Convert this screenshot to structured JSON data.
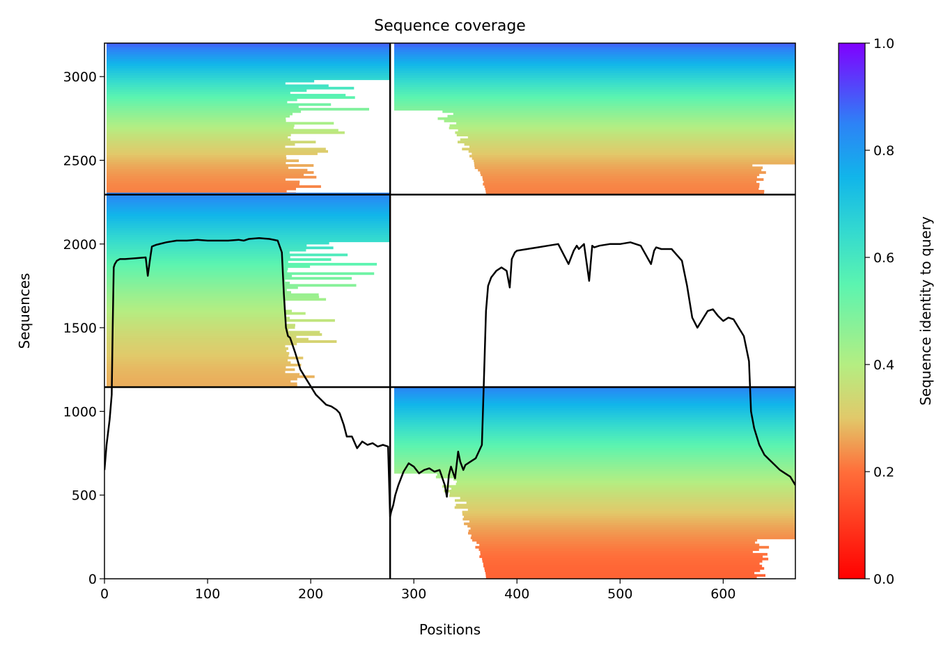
{
  "chart_data": {
    "type": "heatmap",
    "title": "Sequence coverage",
    "xlabel": "Positions",
    "ylabel": "Sequences",
    "xlim": [
      0,
      670
    ],
    "ylim": [
      0,
      3200
    ],
    "xticks": [
      0,
      100,
      200,
      300,
      400,
      500,
      600
    ],
    "yticks": [
      0,
      500,
      1000,
      1500,
      2000,
      2500,
      3000
    ],
    "colorbar": {
      "label": "Sequence identity to query",
      "range": [
        0,
        1
      ],
      "ticks": [
        "0.0",
        "0.2",
        "0.4",
        "0.6",
        "0.8",
        "1.0"
      ],
      "colormap": "rainbow_r"
    },
    "separators": {
      "vertical_at_position": 277,
      "horizontal_at_sequences": [
        1145,
        2295
      ]
    },
    "alignment_blocks": [
      {
        "panel": "top",
        "segment": "left",
        "seq_start": 2295,
        "seq_end": 3200,
        "pos_start": 2,
        "pos_end": 277,
        "identity_range": [
          0.22,
          0.9
        ],
        "coverage_cut": [
          175,
          277
        ]
      },
      {
        "panel": "top",
        "segment": "right",
        "seq_start": 2295,
        "seq_end": 3200,
        "pos_start": 277,
        "pos_end": 670,
        "identity_range": [
          0.22,
          0.9
        ],
        "coverage_cut": [
          370,
          628
        ]
      },
      {
        "panel": "middle",
        "segment": "left",
        "seq_start": 1145,
        "seq_end": 2295,
        "pos_start": 2,
        "pos_end": 277,
        "identity_range": [
          0.27,
          0.85
        ],
        "coverage_cut": [
          175,
          277
        ]
      },
      {
        "panel": "bottom",
        "segment": "right",
        "seq_start": 0,
        "seq_end": 1145,
        "pos_start": 277,
        "pos_end": 670,
        "identity_range": [
          0.18,
          0.85
        ],
        "coverage_cut": [
          370,
          628
        ]
      }
    ],
    "coverage_line": {
      "x": [
        0,
        2,
        5,
        7,
        8,
        9,
        10,
        12,
        15,
        20,
        30,
        40,
        42,
        44,
        46,
        48,
        50,
        60,
        70,
        80,
        90,
        100,
        110,
        120,
        130,
        135,
        140,
        150,
        160,
        168,
        172,
        174,
        176,
        178,
        180,
        185,
        190,
        195,
        200,
        205,
        210,
        215,
        220,
        225,
        228,
        232,
        235,
        240,
        245,
        250,
        255,
        260,
        265,
        270,
        275,
        277,
        278,
        280,
        282,
        285,
        290,
        295,
        300,
        305,
        310,
        315,
        320,
        325,
        330,
        332,
        334,
        336,
        340,
        343,
        345,
        348,
        350,
        355,
        360,
        363,
        366,
        368,
        370,
        372,
        375,
        380,
        385,
        390,
        393,
        395,
        398,
        400,
        410,
        420,
        430,
        440,
        450,
        455,
        458,
        460,
        465,
        470,
        473,
        475,
        480,
        490,
        500,
        510,
        520,
        530,
        533,
        535,
        540,
        550,
        560,
        565,
        570,
        575,
        580,
        585,
        590,
        595,
        600,
        605,
        610,
        615,
        620,
        625,
        627,
        630,
        635,
        640,
        645,
        650,
        655,
        660,
        665,
        670
      ],
      "y": [
        650,
        800,
        950,
        1100,
        1500,
        1860,
        1880,
        1900,
        1910,
        1910,
        1915,
        1920,
        1810,
        1900,
        1985,
        1990,
        1995,
        2010,
        2020,
        2020,
        2025,
        2020,
        2020,
        2020,
        2025,
        2020,
        2030,
        2035,
        2030,
        2020,
        1950,
        1700,
        1500,
        1450,
        1440,
        1350,
        1250,
        1200,
        1150,
        1100,
        1070,
        1040,
        1030,
        1010,
        990,
        920,
        850,
        850,
        780,
        820,
        800,
        810,
        790,
        800,
        790,
        370,
        400,
        440,
        500,
        560,
        640,
        690,
        670,
        630,
        650,
        660,
        640,
        650,
        560,
        490,
        620,
        670,
        600,
        760,
        700,
        650,
        680,
        700,
        720,
        760,
        800,
        1200,
        1600,
        1750,
        1800,
        1840,
        1860,
        1840,
        1740,
        1910,
        1950,
        1960,
        1970,
        1980,
        1990,
        2000,
        1880,
        1960,
        1990,
        1970,
        2000,
        1780,
        1990,
        1980,
        1990,
        2000,
        2000,
        2010,
        1990,
        1880,
        1960,
        1980,
        1970,
        1970,
        1900,
        1750,
        1560,
        1500,
        1550,
        1600,
        1610,
        1570,
        1540,
        1560,
        1550,
        1500,
        1450,
        1300,
        1000,
        900,
        800,
        740,
        710,
        680,
        650,
        630,
        610,
        560
      ]
    }
  }
}
